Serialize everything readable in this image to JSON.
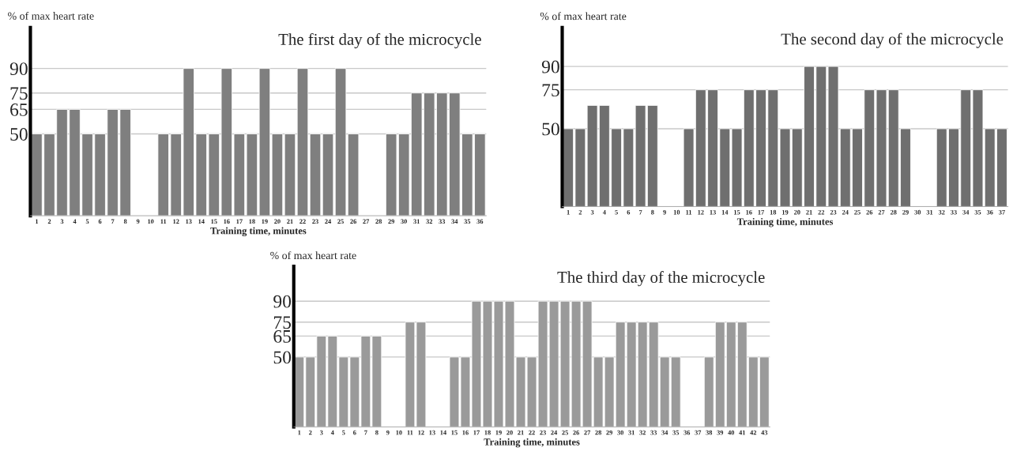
{
  "chart_data": [
    {
      "type": "bar",
      "title": "The first day of the microcycle",
      "xlabel": "Training time, minutes",
      "ylabel": "% of max heart rate",
      "categories": [
        "1",
        "2",
        "3",
        "4",
        "5",
        "6",
        "7",
        "8",
        "9",
        "10",
        "11",
        "12",
        "13",
        "14",
        "15",
        "16",
        "17",
        "18",
        "19",
        "20",
        "21",
        "22",
        "23",
        "24",
        "25",
        "26",
        "27",
        "28",
        "29",
        "30",
        "31",
        "32",
        "33",
        "34",
        "35",
        "36"
      ],
      "values": [
        50,
        50,
        65,
        65,
        50,
        50,
        65,
        65,
        null,
        null,
        50,
        50,
        90,
        50,
        50,
        90,
        50,
        50,
        90,
        50,
        50,
        90,
        50,
        50,
        90,
        50,
        null,
        null,
        50,
        50,
        75,
        75,
        75,
        75,
        50,
        50
      ],
      "color": "#7f7f7f",
      "ylim": [
        0,
        115
      ],
      "yticks": [
        50,
        65,
        75,
        90
      ],
      "grid": "y"
    },
    {
      "type": "bar",
      "title": "The second day of the microcycle",
      "xlabel": "Training time, minutes",
      "ylabel": "% of max heart rate",
      "categories": [
        "1",
        "2",
        "3",
        "4",
        "5",
        "6",
        "7",
        "8",
        "9",
        "10",
        "11",
        "12",
        "13",
        "14",
        "15",
        "16",
        "17",
        "18",
        "19",
        "20",
        "21",
        "22",
        "23",
        "24",
        "25",
        "26",
        "27",
        "28",
        "29",
        "30",
        "31",
        "32",
        "33",
        "34",
        "35",
        "36",
        "37"
      ],
      "values": [
        50,
        50,
        65,
        65,
        50,
        50,
        65,
        65,
        null,
        null,
        50,
        75,
        75,
        50,
        50,
        75,
        75,
        75,
        50,
        50,
        90,
        90,
        90,
        50,
        50,
        75,
        75,
        75,
        50,
        null,
        null,
        50,
        50,
        75,
        75,
        50,
        50
      ],
      "color": "#6f6f6f",
      "ylim": [
        0,
        115
      ],
      "yticks": [
        50,
        75,
        90
      ],
      "grid": "y"
    },
    {
      "type": "bar",
      "title": "The third day of the microcycle",
      "xlabel": "Training time, minutes",
      "ylabel": "% of max heart rate",
      "categories": [
        "1",
        "2",
        "3",
        "4",
        "5",
        "6",
        "7",
        "8",
        "9",
        "10",
        "11",
        "12",
        "13",
        "14",
        "15",
        "16",
        "17",
        "18",
        "19",
        "20",
        "21",
        "22",
        "23",
        "24",
        "25",
        "26",
        "27",
        "28",
        "29",
        "30",
        "31",
        "32",
        "33",
        "34",
        "35",
        "36",
        "37",
        "38",
        "39",
        "40",
        "41",
        "42",
        "43"
      ],
      "values": [
        50,
        50,
        65,
        65,
        50,
        50,
        65,
        65,
        null,
        null,
        75,
        75,
        null,
        null,
        50,
        50,
        90,
        90,
        90,
        90,
        50,
        50,
        90,
        90,
        90,
        90,
        90,
        50,
        50,
        75,
        75,
        75,
        75,
        50,
        50,
        null,
        null,
        50,
        75,
        75,
        75,
        50,
        50
      ],
      "color": "#9a9a9a",
      "ylim": [
        0,
        115
      ],
      "yticks": [
        50,
        65,
        75,
        90
      ],
      "grid": "y"
    }
  ]
}
